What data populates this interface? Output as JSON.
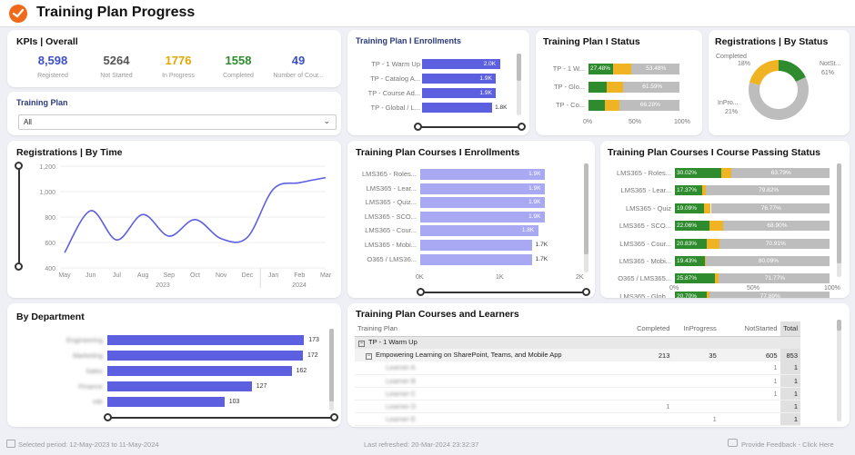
{
  "header": {
    "title": "Training Plan Progress"
  },
  "kpis": {
    "title": "KPIs | Overall",
    "items": [
      {
        "value": "8,598",
        "label": "Registered",
        "color": "#3d4fc4"
      },
      {
        "value": "5264",
        "label": "Not Started",
        "color": "#555555"
      },
      {
        "value": "1776",
        "label": "In Progress",
        "color": "#e0a800"
      },
      {
        "value": "1558",
        "label": "Completed",
        "color": "#2e8b2e"
      },
      {
        "value": "49",
        "label": "Number of Cour...",
        "color": "#3d4fc4"
      }
    ]
  },
  "filter": {
    "title": "Training Plan",
    "selected": "All"
  },
  "enrollments": {
    "title": "Training Plan I Enrollments",
    "rows": [
      {
        "label": "TP - 1 Warm Up",
        "value": 2.0,
        "text": "2.0K"
      },
      {
        "label": "TP - Catalog A...",
        "value": 1.9,
        "text": "1.9K"
      },
      {
        "label": "TP - Course Ad...",
        "value": 1.9,
        "text": "1.9K"
      },
      {
        "label": "TP - Global / L...",
        "value": 1.8,
        "text": "1.8K"
      }
    ]
  },
  "status": {
    "title": "Training Plan I Status",
    "rows": [
      {
        "label": "TP - 1 W...",
        "completed": 27.48,
        "inprogress": 19.04,
        "text_left": "27.48%",
        "text_right": "53.48%"
      },
      {
        "label": "TP - Glo...",
        "completed": 20.0,
        "inprogress": 18.41,
        "text_left": "",
        "text_right": "61.59%"
      },
      {
        "label": "TP - Co...",
        "completed": 18.0,
        "inprogress": 15.72,
        "text_left": "",
        "text_right": "66.28%"
      }
    ],
    "ticks": [
      "0%",
      "50%",
      "100%"
    ]
  },
  "reg_status": {
    "title": "Registrations | By Status",
    "slices": [
      {
        "label": "Completed",
        "pct": "18%",
        "value": 18,
        "color": "#2e8b2e"
      },
      {
        "label": "InPro...",
        "pct": "21%",
        "value": 21,
        "color": "#f0b323"
      },
      {
        "label": "NotSt...",
        "pct": "61%",
        "value": 61,
        "color": "#bdbdbd"
      }
    ]
  },
  "reg_time": {
    "title": "Registrations | By Time",
    "yticks": [
      "1,200",
      "1,000",
      "800",
      "600",
      "400"
    ],
    "xticks": [
      "May",
      "Jun",
      "Jul",
      "Aug",
      "Sep",
      "Oct",
      "Nov",
      "Dec",
      "Jan",
      "Feb",
      "Mar"
    ],
    "years": [
      "2023",
      "2024"
    ],
    "values": [
      520,
      850,
      620,
      820,
      650,
      780,
      630,
      640,
      1020,
      1070,
      1110
    ],
    "ylim": [
      400,
      1200
    ]
  },
  "course_enroll": {
    "title": "Training Plan Courses I Enrollments",
    "rows": [
      {
        "label": "LMS365 - Roles...",
        "value": 1.9,
        "text": "1.9K"
      },
      {
        "label": "LMS365 - Lear...",
        "value": 1.9,
        "text": "1.9K"
      },
      {
        "label": "LMS365 - Quiz...",
        "value": 1.9,
        "text": "1.9K"
      },
      {
        "label": "LMS365 - SCO...",
        "value": 1.9,
        "text": "1.9K"
      },
      {
        "label": "LMS365 - Cour...",
        "value": 1.8,
        "text": "1.8K"
      },
      {
        "label": "LMS365 - Mobi...",
        "value": 1.7,
        "text": "1.7K"
      },
      {
        "label": "O365 / LMS36...",
        "value": 1.7,
        "text": "1.7K"
      }
    ],
    "ticks": [
      "0K",
      "1K",
      "2K"
    ]
  },
  "passing": {
    "title": "Training Plan Courses I Course Passing Status",
    "rows": [
      {
        "label": "LMS365 - Roles...",
        "completed": 30.02,
        "inprogress": 6.19,
        "text_left": "30.02%",
        "text_right": "63.79%"
      },
      {
        "label": "LMS365 - Lear...",
        "completed": 17.37,
        "inprogress": 2.81,
        "text_left": "17.37%",
        "text_right": "79.82%"
      },
      {
        "label": "LMS365 - Quiz",
        "completed": 19.09,
        "inprogress": 4.15,
        "text_left": "19.09%",
        "text_right": "76.77%"
      },
      {
        "label": "LMS365 - SCO...",
        "completed": 22.06,
        "inprogress": 9.04,
        "text_left": "22.06%",
        "text_right": "68.90%"
      },
      {
        "label": "LMS365 - Cour...",
        "completed": 20.83,
        "inprogress": 8.26,
        "text_left": "20.83%",
        "text_right": "70.91%"
      },
      {
        "label": "LMS365 - Mobi...",
        "completed": 19.43,
        "inprogress": 0.48,
        "text_left": "19.43%",
        "text_right": "80.09%"
      },
      {
        "label": "O365 / LMS365...",
        "completed": 25.87,
        "inprogress": 2.36,
        "text_left": "25.87%",
        "text_right": "71.77%"
      },
      {
        "label": "LMS365 - Glob...",
        "completed": 20.7,
        "inprogress": 1.41,
        "text_left": "20.70%",
        "text_right": "77.89%"
      }
    ],
    "ticks": [
      "0%",
      "50%",
      "100%"
    ]
  },
  "department": {
    "title": "By Department",
    "rows": [
      {
        "label": "Engineering",
        "value": 173
      },
      {
        "label": "Marketing",
        "value": 172
      },
      {
        "label": "Sales",
        "value": 162
      },
      {
        "label": "Finance",
        "value": 127
      },
      {
        "label": "HR",
        "value": 103
      }
    ]
  },
  "learners": {
    "title": "Training Plan Courses and Learners",
    "columns": [
      "Training Plan",
      "Completed",
      "InProgress",
      "NotStarted",
      "Total"
    ],
    "group": "TP - 1 Warm Up",
    "course": {
      "name": "Empowering Learning on SharePoint, Teams, and Mobile App",
      "completed": "213",
      "inprogress": "35",
      "notstarted": "605",
      "total": "853"
    },
    "learners": [
      {
        "name": "Learner A",
        "completed": "",
        "inprogress": "",
        "notstarted": "1",
        "total": "1"
      },
      {
        "name": "Learner B",
        "completed": "",
        "inprogress": "",
        "notstarted": "1",
        "total": "1"
      },
      {
        "name": "Learner C",
        "completed": "",
        "inprogress": "",
        "notstarted": "1",
        "total": "1"
      },
      {
        "name": "Learner D",
        "completed": "1",
        "inprogress": "",
        "notstarted": "",
        "total": "1"
      },
      {
        "name": "Learner E",
        "completed": "",
        "inprogress": "1",
        "notstarted": "",
        "total": "1"
      }
    ]
  },
  "footer": {
    "period": "Selected period: 12-May-2023 to 11-May-2024",
    "refreshed": "Last refreshed: 20-Mar-2024 23:32:37",
    "feedback": "Provide Feedback - Click Here"
  },
  "colors": {
    "primary": "#5b5fe0",
    "light": "#a9a9f3",
    "completed": "#2e8b2e",
    "inprogress": "#f0b323",
    "notstarted": "#bdbdbd",
    "brand": "#f06a1c"
  }
}
